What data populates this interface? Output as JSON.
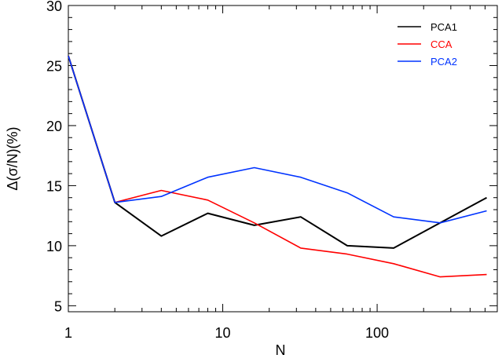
{
  "chart_data": {
    "type": "line",
    "xlabel": "N",
    "ylabel": "Δ(σ/N)(%)",
    "xscale": "log",
    "xlim": [
      1,
      600
    ],
    "ylim": [
      4.5,
      30
    ],
    "yticks": [
      5,
      10,
      15,
      20,
      25,
      30
    ],
    "xticks": [
      1,
      10,
      100
    ],
    "xtick_labels": [
      "1",
      "10",
      "100"
    ],
    "grid": false,
    "legend_position": "top-right",
    "x": [
      1,
      2,
      4,
      8,
      16,
      32,
      64,
      128,
      256,
      512
    ],
    "series": [
      {
        "name": "PCA1",
        "color": "#000000",
        "values": [
          25.8,
          13.6,
          10.8,
          12.7,
          11.7,
          12.4,
          10.0,
          9.8,
          11.9,
          14.0
        ]
      },
      {
        "name": "CCA",
        "color": "#ff0000",
        "values": [
          25.8,
          13.6,
          14.6,
          13.8,
          11.9,
          9.8,
          9.3,
          8.5,
          7.4,
          7.6
        ]
      },
      {
        "name": "PCA2",
        "color": "#0033ff",
        "values": [
          25.8,
          13.6,
          14.1,
          15.7,
          16.5,
          15.7,
          14.4,
          12.4,
          11.9,
          12.9
        ]
      }
    ]
  }
}
